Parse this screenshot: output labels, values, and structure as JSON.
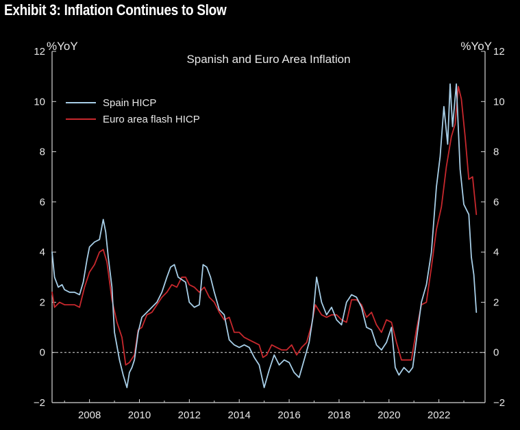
{
  "exhibit_title": "Exhibit 3: Inflation Continues to Slow",
  "chart_data": {
    "type": "line",
    "title": "Spanish and Euro Area Inflation",
    "ylabel_left": "%YoY",
    "ylabel_right": "%YoY",
    "ylim": [
      -2,
      12
    ],
    "yticks": [
      -2,
      0,
      2,
      4,
      6,
      8,
      10,
      12
    ],
    "xlim": [
      2006.5,
      2023.85
    ],
    "xticks": [
      2008,
      2010,
      2012,
      2014,
      2016,
      2018,
      2020,
      2022
    ],
    "xtick_labels": [
      "2008",
      "2010",
      "2012",
      "2014",
      "2016",
      "2018",
      "2020",
      "2022"
    ],
    "zero_line": {
      "value": 0,
      "style": "dashed"
    },
    "legend_position": "top-left",
    "series": [
      {
        "name": "Spain HICP",
        "color": "#a8cfe8",
        "x": [
          2006.5,
          2006.6,
          2006.75,
          2006.9,
          2007.0,
          2007.2,
          2007.4,
          2007.6,
          2007.75,
          2007.9,
          2008.0,
          2008.2,
          2008.4,
          2008.55,
          2008.65,
          2008.75,
          2008.9,
          2009.0,
          2009.2,
          2009.35,
          2009.5,
          2009.6,
          2009.7,
          2009.8,
          2009.95,
          2010.1,
          2010.3,
          2010.5,
          2010.7,
          2010.9,
          2011.1,
          2011.25,
          2011.4,
          2011.55,
          2011.7,
          2011.85,
          2012.0,
          2012.2,
          2012.4,
          2012.55,
          2012.7,
          2012.85,
          2013.0,
          2013.2,
          2013.4,
          2013.6,
          2013.8,
          2014.0,
          2014.2,
          2014.4,
          2014.6,
          2014.8,
          2015.0,
          2015.2,
          2015.4,
          2015.6,
          2015.8,
          2016.0,
          2016.2,
          2016.4,
          2016.6,
          2016.8,
          2016.95,
          2017.1,
          2017.3,
          2017.5,
          2017.7,
          2017.9,
          2018.1,
          2018.3,
          2018.5,
          2018.7,
          2018.9,
          2019.1,
          2019.3,
          2019.5,
          2019.7,
          2019.9,
          2020.1,
          2020.25,
          2020.4,
          2020.6,
          2020.8,
          2020.95,
          2021.1,
          2021.3,
          2021.5,
          2021.7,
          2021.9,
          2022.05,
          2022.2,
          2022.35,
          2022.45,
          2022.55,
          2022.7,
          2022.85,
          2023.0,
          2023.2,
          2023.3,
          2023.4,
          2023.5
        ],
        "values": [
          4.0,
          3.0,
          2.6,
          2.7,
          2.5,
          2.4,
          2.4,
          2.3,
          2.8,
          3.7,
          4.2,
          4.4,
          4.5,
          5.3,
          4.8,
          3.8,
          2.6,
          0.8,
          -0.3,
          -0.9,
          -1.4,
          -0.8,
          -0.6,
          -0.3,
          0.8,
          1.4,
          1.6,
          1.8,
          2.0,
          2.4,
          3.0,
          3.4,
          3.5,
          3.0,
          2.9,
          2.8,
          2.0,
          1.8,
          1.9,
          3.5,
          3.4,
          3.0,
          2.4,
          1.7,
          1.5,
          0.5,
          0.3,
          0.2,
          0.3,
          0.2,
          -0.2,
          -0.5,
          -1.4,
          -0.7,
          -0.1,
          -0.5,
          -0.3,
          -0.4,
          -0.8,
          -1.0,
          -0.3,
          0.4,
          1.4,
          3.0,
          2.0,
          1.5,
          1.8,
          1.3,
          1.1,
          2.0,
          2.3,
          2.2,
          1.8,
          1.0,
          0.9,
          0.3,
          0.1,
          0.4,
          1.0,
          -0.6,
          -0.9,
          -0.6,
          -0.8,
          -0.6,
          0.5,
          2.0,
          2.7,
          4.0,
          6.6,
          7.8,
          9.8,
          8.3,
          10.7,
          9.0,
          10.7,
          7.3,
          5.9,
          5.5,
          3.8,
          3.1,
          1.6
        ]
      },
      {
        "name": "Euro area flash HICP",
        "color": "#c8282d",
        "x": [
          2006.5,
          2006.6,
          2006.8,
          2007.0,
          2007.2,
          2007.4,
          2007.6,
          2007.8,
          2008.0,
          2008.2,
          2008.4,
          2008.55,
          2008.7,
          2008.9,
          2009.1,
          2009.3,
          2009.45,
          2009.6,
          2009.8,
          2009.95,
          2010.1,
          2010.3,
          2010.5,
          2010.7,
          2010.9,
          2011.1,
          2011.3,
          2011.5,
          2011.7,
          2011.85,
          2012.0,
          2012.2,
          2012.4,
          2012.6,
          2012.8,
          2013.0,
          2013.2,
          2013.4,
          2013.6,
          2013.8,
          2014.0,
          2014.2,
          2014.4,
          2014.6,
          2014.8,
          2014.95,
          2015.1,
          2015.3,
          2015.5,
          2015.7,
          2015.9,
          2016.1,
          2016.3,
          2016.5,
          2016.7,
          2016.9,
          2017.05,
          2017.3,
          2017.5,
          2017.7,
          2017.9,
          2018.1,
          2018.3,
          2018.5,
          2018.7,
          2018.9,
          2019.1,
          2019.3,
          2019.5,
          2019.7,
          2019.9,
          2020.1,
          2020.3,
          2020.5,
          2020.7,
          2020.9,
          2021.1,
          2021.3,
          2021.5,
          2021.7,
          2021.9,
          2022.1,
          2022.3,
          2022.5,
          2022.65,
          2022.78,
          2022.9,
          2023.05,
          2023.2,
          2023.35,
          2023.5
        ],
        "values": [
          2.4,
          1.8,
          2.0,
          1.9,
          1.9,
          1.9,
          1.8,
          2.6,
          3.2,
          3.5,
          4.0,
          4.1,
          3.6,
          2.1,
          1.2,
          0.6,
          -0.5,
          -0.4,
          -0.1,
          0.9,
          1.0,
          1.5,
          1.6,
          1.9,
          2.2,
          2.4,
          2.7,
          2.6,
          3.0,
          3.0,
          2.7,
          2.6,
          2.4,
          2.6,
          2.2,
          2.0,
          1.6,
          1.3,
          1.4,
          0.8,
          0.8,
          0.6,
          0.5,
          0.4,
          0.3,
          -0.2,
          -0.1,
          0.3,
          0.2,
          0.1,
          0.1,
          0.3,
          -0.1,
          0.2,
          0.4,
          1.1,
          1.9,
          1.5,
          1.4,
          1.5,
          1.5,
          1.3,
          1.2,
          2.1,
          2.1,
          1.9,
          1.4,
          1.6,
          1.1,
          0.8,
          1.3,
          1.2,
          0.4,
          -0.3,
          -0.3,
          -0.3,
          0.9,
          1.9,
          2.0,
          3.4,
          4.9,
          5.8,
          7.4,
          8.6,
          9.1,
          10.6,
          10.1,
          8.6,
          6.9,
          7.0,
          5.5
        ]
      }
    ]
  }
}
